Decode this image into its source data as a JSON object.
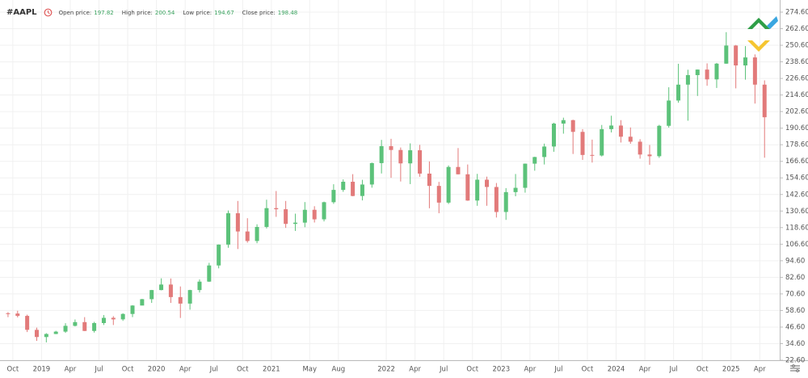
{
  "header": {
    "symbol": "#AAPL",
    "fields": [
      {
        "label": "Open price:",
        "value": 197.82
      },
      {
        "label": "High price:",
        "value": 200.54
      },
      {
        "label": "Low price:",
        "value": 194.67
      },
      {
        "label": "Close price:",
        "value": 198.48
      }
    ]
  },
  "chart_data": {
    "type": "candlestick",
    "x": [
      "2018-09",
      "2018-10",
      "2018-11",
      "2018-12",
      "2019-01",
      "2019-02",
      "2019-03",
      "2019-04",
      "2019-05",
      "2019-06",
      "2019-07",
      "2019-08",
      "2019-09",
      "2019-10",
      "2019-11",
      "2019-12",
      "2020-01",
      "2020-02",
      "2020-03",
      "2020-04",
      "2020-05",
      "2020-06",
      "2020-07",
      "2020-08",
      "2020-09",
      "2020-10",
      "2020-11",
      "2020-12",
      "2021-01",
      "2021-02",
      "2021-03",
      "2021-04",
      "2021-05",
      "2021-06",
      "2021-07",
      "2021-08",
      "2021-09",
      "2021-10",
      "2021-11",
      "2021-12",
      "2022-01",
      "2022-02",
      "2022-03",
      "2022-04",
      "2022-05",
      "2022-06",
      "2022-07",
      "2022-08",
      "2022-09",
      "2022-10",
      "2022-11",
      "2022-12",
      "2023-01",
      "2023-02",
      "2023-03",
      "2023-04",
      "2023-05",
      "2023-06",
      "2023-07",
      "2023-08",
      "2023-09",
      "2023-10",
      "2023-11",
      "2023-12",
      "2024-01",
      "2024-02",
      "2024-03",
      "2024-04",
      "2024-05",
      "2024-06",
      "2024-07",
      "2024-08",
      "2024-09",
      "2024-10",
      "2024-11",
      "2024-12",
      "2025-01",
      "2025-02",
      "2025-03",
      "2025-04"
    ],
    "open": [
      56.6,
      56.4,
      54.7,
      44.6,
      39.4,
      41.6,
      43.3,
      47.5,
      50.2,
      43.8,
      49.5,
      53.3,
      52.2,
      56.1,
      62.2,
      66.8,
      73.4,
      77.4,
      68.3,
      63.6,
      73.4,
      79.5,
      91.2,
      106.3,
      129.0,
      115.8,
      108.9,
      119.1,
      132.7,
      131.9,
      121.3,
      122.2,
      131.5,
      124.6,
      137.0,
      145.9,
      151.8,
      141.5,
      149.8,
      165.3,
      177.6,
      174.8,
      165.1,
      174.6,
      157.7,
      148.8,
      136.7,
      162.5,
      157.2,
      138.2,
      153.3,
      148.0,
      129.9,
      144.3,
      147.4,
      164.9,
      169.7,
      177.3,
      193.9,
      196.4,
      187.9,
      171.2,
      170.8,
      189.9,
      192.5,
      184.4,
      180.8,
      171.5,
      170.3,
      192.3,
      210.6,
      222.1,
      229.0,
      233.0,
      225.9,
      237.3,
      250.4,
      236.0,
      241.8,
      222.1
    ],
    "high": [
      57.4,
      58.4,
      55.6,
      46.2,
      42.2,
      43.9,
      49.4,
      52.1,
      53.8,
      50.4,
      55.3,
      54.5,
      56.6,
      62.4,
      67.0,
      73.5,
      81.9,
      81.8,
      76.0,
      73.6,
      81.1,
      93.1,
      106.4,
      131.0,
      137.9,
      125.4,
      121.0,
      138.8,
      145.1,
      137.9,
      128.7,
      137.1,
      134.1,
      137.4,
      150.0,
      153.5,
      157.3,
      153.2,
      165.7,
      182.1,
      182.9,
      176.6,
      179.6,
      178.5,
      166.5,
      151.7,
      163.6,
      176.2,
      164.3,
      157.5,
      155.5,
      150.9,
      147.2,
      157.4,
      165.0,
      169.9,
      179.4,
      194.5,
      198.2,
      196.7,
      189.9,
      182.3,
      192.9,
      199.6,
      196.4,
      191.1,
      182.6,
      178.4,
      193.0,
      220.2,
      237.2,
      232.9,
      233.1,
      237.5,
      237.8,
      260.1,
      250.8,
      250.0,
      244.0,
      225.2
    ],
    "low": [
      53.8,
      53.6,
      43.0,
      36.6,
      35.5,
      41.5,
      42.4,
      47.1,
      43.7,
      42.6,
      48.1,
      48.1,
      51.1,
      53.8,
      62.3,
      64.1,
      73.2,
      64.1,
      53.2,
      59.2,
      71.6,
      79.3,
      89.1,
      104.0,
      103.1,
      107.7,
      107.3,
      118.0,
      126.4,
      118.4,
      116.2,
      118.9,
      122.3,
      123.1,
      135.8,
      144.5,
      141.3,
      138.3,
      147.5,
      157.8,
      154.7,
      152.0,
      150.1,
      155.4,
      132.6,
      129.0,
      135.7,
      157.1,
      138.0,
      134.4,
      134.4,
      125.9,
      124.2,
      141.3,
      143.9,
      159.8,
      164.3,
      173.5,
      186.6,
      171.9,
      167.6,
      165.7,
      170.1,
      187.5,
      180.2,
      179.3,
      168.5,
      164.1,
      169.1,
      191.0,
      209.0,
      196.0,
      213.9,
      221.3,
      219.7,
      237.2,
      219.4,
      225.7,
      208.4,
      169.2
    ],
    "close": [
      56.4,
      54.7,
      44.6,
      39.4,
      41.6,
      43.3,
      47.5,
      50.2,
      43.8,
      49.5,
      53.3,
      52.2,
      56.1,
      62.2,
      66.8,
      73.4,
      77.4,
      68.3,
      63.6,
      73.4,
      79.5,
      91.2,
      106.3,
      129.0,
      115.8,
      108.9,
      119.1,
      132.7,
      131.9,
      121.3,
      122.2,
      131.5,
      124.6,
      137.0,
      145.9,
      151.8,
      141.5,
      149.8,
      165.3,
      177.6,
      174.8,
      165.1,
      174.6,
      157.7,
      148.8,
      136.7,
      162.5,
      157.2,
      138.2,
      153.3,
      148.0,
      129.9,
      144.3,
      147.4,
      164.9,
      169.7,
      177.3,
      193.9,
      196.4,
      187.9,
      171.2,
      170.8,
      189.9,
      192.5,
      184.4,
      180.8,
      171.5,
      170.3,
      192.3,
      210.6,
      222.1,
      229.0,
      233.0,
      225.9,
      237.3,
      250.4,
      236.0,
      241.8,
      222.1,
      198.5
    ],
    "up_color": "#5cc27a",
    "down_color": "#e27a7a",
    "xlim": [
      "2018-09",
      "2025-06"
    ],
    "xticks": [
      {
        "value": "2018-10",
        "label": "Oct"
      },
      {
        "value": "2019-01",
        "label": "2019"
      },
      {
        "value": "2019-04",
        "label": "Apr"
      },
      {
        "value": "2019-07",
        "label": "Jul"
      },
      {
        "value": "2019-10",
        "label": "Oct"
      },
      {
        "value": "2020-01",
        "label": "2020"
      },
      {
        "value": "2020-04",
        "label": "Apr"
      },
      {
        "value": "2020-07",
        "label": "Jul"
      },
      {
        "value": "2020-10",
        "label": "Oct"
      },
      {
        "value": "2021-01",
        "label": "2021"
      },
      {
        "value": "2021-05",
        "label": "May"
      },
      {
        "value": "2021-08",
        "label": "Aug"
      },
      {
        "value": "2022-01",
        "label": "2022"
      },
      {
        "value": "2022-04",
        "label": "Apr"
      },
      {
        "value": "2022-07",
        "label": "Jul"
      },
      {
        "value": "2022-10",
        "label": "Oct"
      },
      {
        "value": "2023-01",
        "label": "2023"
      },
      {
        "value": "2023-04",
        "label": "Apr"
      },
      {
        "value": "2023-07",
        "label": "Jul"
      },
      {
        "value": "2023-10",
        "label": "Oct"
      },
      {
        "value": "2024-01",
        "label": "2024"
      },
      {
        "value": "2024-04",
        "label": "Apr"
      },
      {
        "value": "2024-07",
        "label": "Jul"
      },
      {
        "value": "2024-10",
        "label": "Oct"
      },
      {
        "value": "2025-01",
        "label": "2025"
      },
      {
        "value": "2025-04",
        "label": "Apr"
      }
    ],
    "ylim": [
      22.6,
      274.6
    ],
    "yticks": [
      {
        "value": 22.6,
        "label": "22.60"
      },
      {
        "value": 34.6,
        "label": "34.60"
      },
      {
        "value": 46.6,
        "label": "46.60"
      },
      {
        "value": 58.6,
        "label": "58.60"
      },
      {
        "value": 70.6,
        "label": "70.60"
      },
      {
        "value": 82.6,
        "label": "82.60"
      },
      {
        "value": 94.6,
        "label": "94.60"
      },
      {
        "value": 106.6,
        "label": "106.60"
      },
      {
        "value": 118.6,
        "label": "118.60"
      },
      {
        "value": 130.6,
        "label": "130.60"
      },
      {
        "value": 142.6,
        "label": "142.60"
      },
      {
        "value": 154.6,
        "label": "154.60"
      },
      {
        "value": 166.6,
        "label": "166.60"
      },
      {
        "value": 178.6,
        "label": "178.60"
      },
      {
        "value": 190.6,
        "label": "190.60"
      },
      {
        "value": 202.6,
        "label": "202.60"
      },
      {
        "value": 214.6,
        "label": "214.60"
      },
      {
        "value": 226.6,
        "label": "226.60"
      },
      {
        "value": 238.6,
        "label": "238.60"
      },
      {
        "value": 250.6,
        "label": "250.60"
      },
      {
        "value": 262.6,
        "label": "262.60"
      },
      {
        "value": 274.6,
        "label": "274.60"
      }
    ],
    "grid": true
  }
}
